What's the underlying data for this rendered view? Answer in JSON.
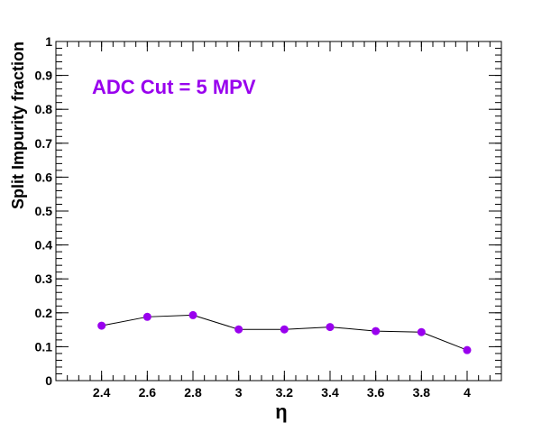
{
  "chart_data": {
    "type": "scatter",
    "annotation": "ADC Cut = 5 MPV",
    "annotation_color": "#9900ee",
    "xlabel": "η",
    "ylabel": "Split Impurity fraction",
    "xlim": [
      2.2,
      4.15
    ],
    "ylim": [
      0,
      1
    ],
    "x_ticks": [
      "2.4",
      "2.6",
      "2.8",
      "3",
      "3.2",
      "3.4",
      "3.6",
      "3.8",
      "4"
    ],
    "y_ticks": [
      "0",
      "0.1",
      "0.2",
      "0.3",
      "0.4",
      "0.5",
      "0.6",
      "0.7",
      "0.8",
      "0.9",
      "1"
    ],
    "grid": false,
    "series": [
      {
        "marker_color": "#9900ee",
        "line_color": "#000000",
        "x": [
          2.4,
          2.6,
          2.8,
          3.0,
          3.2,
          3.4,
          3.6,
          3.8,
          4.0
        ],
        "y": [
          0.162,
          0.188,
          0.193,
          0.151,
          0.151,
          0.158,
          0.146,
          0.143,
          0.09
        ]
      }
    ]
  }
}
